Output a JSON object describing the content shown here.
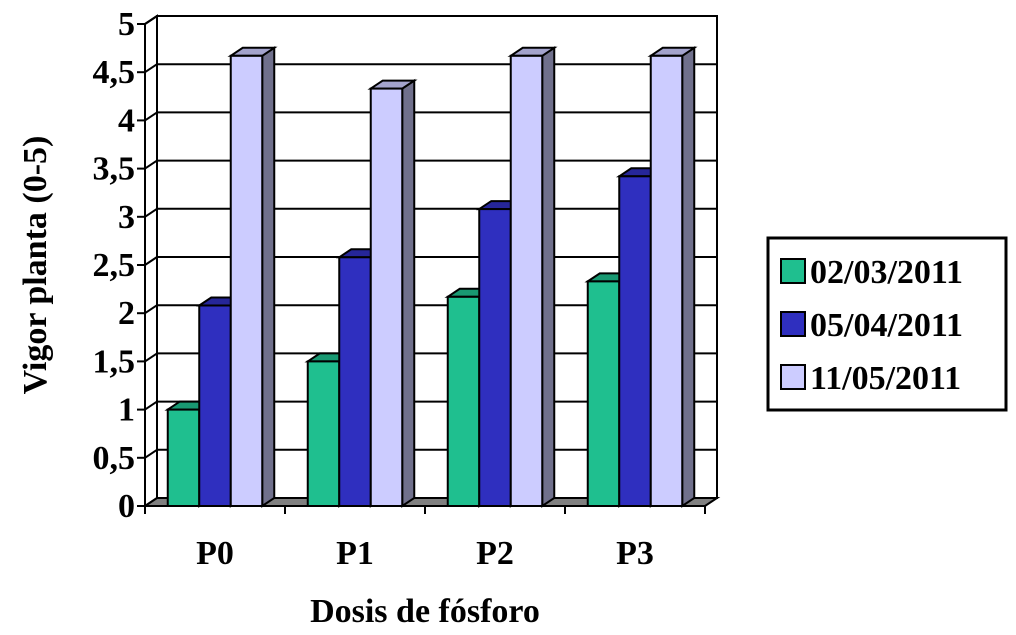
{
  "chart_data": {
    "type": "bar",
    "title": "",
    "xlabel": "Dosis de fósforo",
    "ylabel": "Vigor planta (0-5)",
    "categories": [
      "P0",
      "P1",
      "P2",
      "P3"
    ],
    "ylim": [
      0,
      5
    ],
    "yticks": [
      "0",
      "0,5",
      "1",
      "1,5",
      "2",
      "2,5",
      "3",
      "3,5",
      "4",
      "4,5",
      "5"
    ],
    "grid": true,
    "legend_position": "right",
    "series": [
      {
        "name": "02/03/2011",
        "values": [
          1.0,
          1.5,
          2.17,
          2.33
        ],
        "color": "#1fbf8f"
      },
      {
        "name": "05/04/2011",
        "values": [
          2.08,
          2.58,
          3.08,
          3.42
        ],
        "color": "#2f2fbf"
      },
      {
        "name": "11/05/2011",
        "values": [
          4.67,
          4.33,
          4.67,
          4.67
        ],
        "color": "#ccccff"
      }
    ]
  }
}
